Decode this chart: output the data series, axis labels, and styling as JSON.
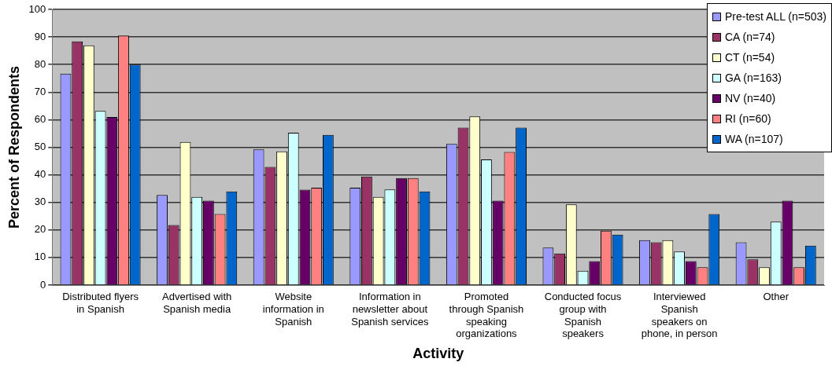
{
  "chart_data": {
    "type": "bar",
    "xlabel": "Activity",
    "ylabel": "Percent of Respondents",
    "categories": [
      "Distributed flyers in Spanish",
      "Advertised with Spanish media",
      "Website information in Spanish",
      "Information in newsletter about Spanish services",
      "Promoted through Spanish speaking organizations",
      "Conducted focus group with Spanish speakers",
      "Interviewed Spanish speakers on phone, in person",
      "Other"
    ],
    "series": [
      {
        "name": "Pre-test ALL (n=503)",
        "color": "#9999ff",
        "values": [
          76.7,
          32.7,
          49.2,
          35.3,
          51.2,
          13.6,
          16.3,
          15.5
        ]
      },
      {
        "name": "CA (n=74)",
        "color": "#993366",
        "values": [
          88.4,
          21.8,
          42.9,
          39.4,
          57.1,
          11.5,
          15.5,
          9.3
        ]
      },
      {
        "name": "CT (n=54)",
        "color": "#ffffcc",
        "values": [
          87,
          51.9,
          48.5,
          32,
          61.2,
          29.3,
          16.3,
          6.5
        ]
      },
      {
        "name": "GA (n=163)",
        "color": "#ccffff",
        "values": [
          63.2,
          32,
          55.3,
          34.7,
          45.6,
          5.2,
          12.2,
          23
        ]
      },
      {
        "name": "NV (n=40)",
        "color": "#660066",
        "values": [
          61,
          30.6,
          34.6,
          38.8,
          30.6,
          8.7,
          8.7,
          30.6
        ]
      },
      {
        "name": "RI (n=60)",
        "color": "#ff8080",
        "values": [
          90.5,
          25.8,
          35.3,
          38.8,
          48.3,
          19.7,
          6.5,
          6.5
        ]
      },
      {
        "name": "WA (n=107)",
        "color": "#0066cc",
        "values": [
          80,
          34,
          54.5,
          34,
          57.1,
          18.3,
          25.8,
          14.3
        ]
      }
    ],
    "ylim": [
      0,
      100
    ],
    "yticks": [
      0,
      10,
      20,
      30,
      40,
      50,
      60,
      70,
      80,
      90,
      100
    ],
    "grid": "y",
    "legend": "top right"
  }
}
